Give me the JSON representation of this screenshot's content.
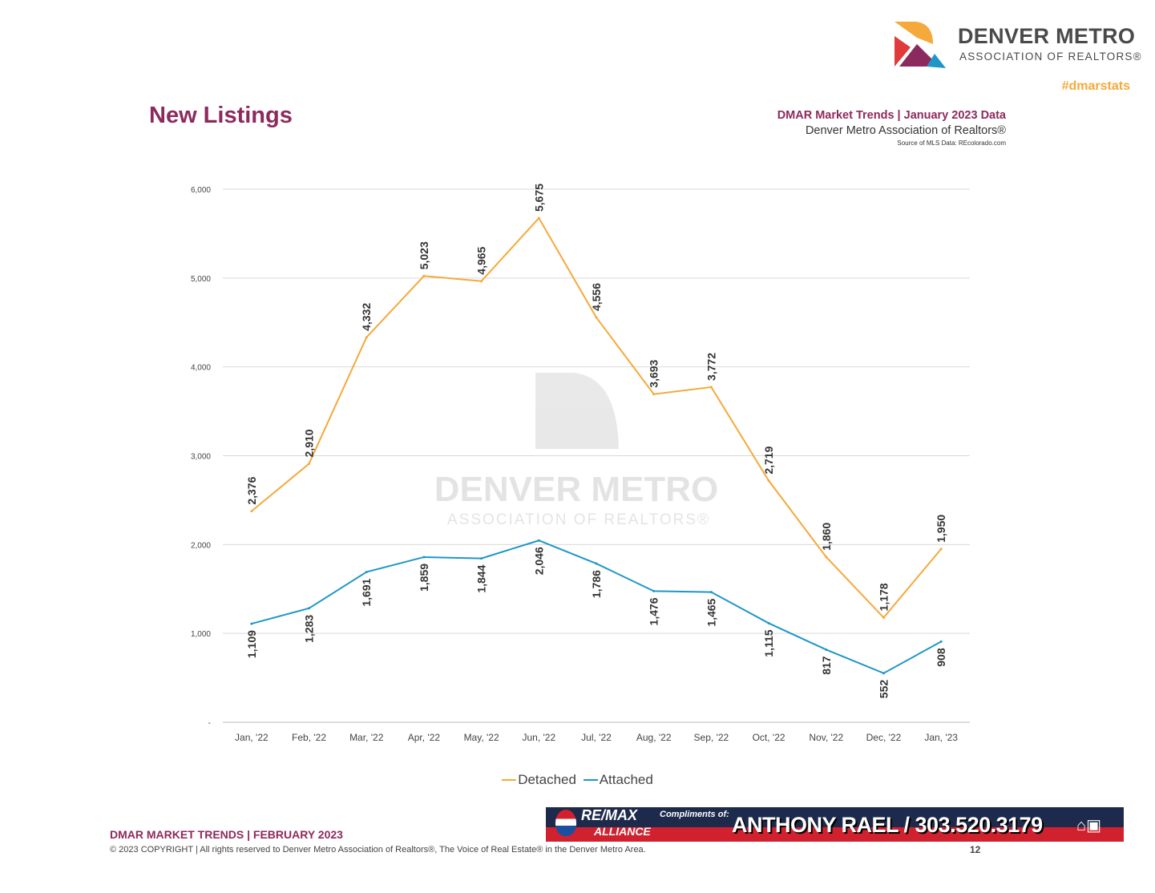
{
  "header": {
    "logo_line1": "DENVER METRO",
    "logo_line2": "ASSOCIATION OF REALTORS®",
    "hashtag": "#dmarstats",
    "title": "New Listings",
    "subtitle1": "DMAR Market Trends | January 2023 Data",
    "subtitle2": "Denver Metro Association of Realtors®",
    "source": "Source of MLS Data: REcolorado.com"
  },
  "chart_data": {
    "type": "line",
    "title": "New Listings",
    "xlabel": "",
    "ylabel": "",
    "categories": [
      "Jan, '22",
      "Feb, '22",
      "Mar, '22",
      "Apr, '22",
      "May, '22",
      "Jun, '22",
      "Jul, '22",
      "Aug, '22",
      "Sep, '22",
      "Oct, '22",
      "Nov, '22",
      "Dec, '22",
      "Jan, '23"
    ],
    "ylim": [
      0,
      6000
    ],
    "yticks": [
      {
        "v": 0,
        "label": "-"
      },
      {
        "v": 1000,
        "label": "1,000"
      },
      {
        "v": 2000,
        "label": "2,000"
      },
      {
        "v": 3000,
        "label": "3,000"
      },
      {
        "v": 4000,
        "label": "4,000"
      },
      {
        "v": 5000,
        "label": "5,000"
      },
      {
        "v": 6000,
        "label": "6,000"
      }
    ],
    "grid": true,
    "legend_position": "bottom",
    "series": [
      {
        "name": "Detached",
        "color": "#f5a93a",
        "values": [
          2376,
          2910,
          4332,
          5023,
          4965,
          5675,
          4556,
          3693,
          3772,
          2719,
          1860,
          1178,
          1950
        ],
        "labels": [
          "2,376",
          "2,910",
          "4,332",
          "5,023",
          "4,965",
          "5,675",
          "4,556",
          "3,693",
          "3,772",
          "2,719",
          "1,860",
          "1,178",
          "1,950"
        ]
      },
      {
        "name": "Attached",
        "color": "#1f96c8",
        "values": [
          1109,
          1283,
          1691,
          1859,
          1844,
          2046,
          1786,
          1476,
          1465,
          1115,
          817,
          552,
          908
        ],
        "labels": [
          "1,109",
          "1,283",
          "1,691",
          "1,859",
          "1,844",
          "2,046",
          "1,786",
          "1,476",
          "1,465",
          "1,115",
          "817",
          "552",
          "908"
        ]
      }
    ]
  },
  "watermark": {
    "line1": "DENVER METRO",
    "line2": "ASSOCIATION OF REALTORS®"
  },
  "footer": {
    "title": "DMAR MARKET TRENDS | FEBRUARY 2023",
    "copyright": "© 2023 COPYRIGHT | All rights reserved to Denver Metro Association of Realtors®, The Voice of Real Estate® in the Denver Metro Area.",
    "page": "12"
  },
  "banner": {
    "brand1": "RE/MAX",
    "brand2": "ALLIANCE",
    "compliments": "Compliments of:",
    "agent": "ANTHONY RAEL / 303.520.3179"
  }
}
